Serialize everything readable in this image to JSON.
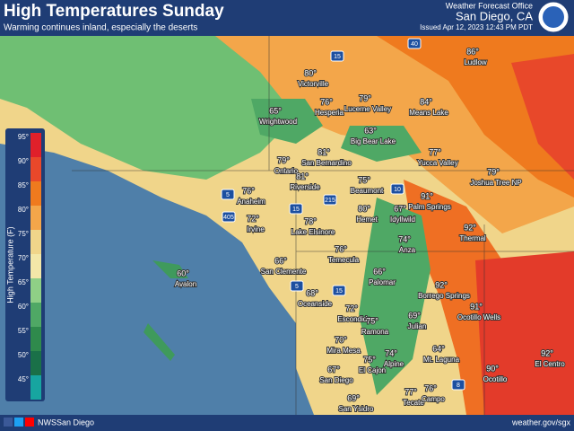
{
  "header": {
    "title": "High Temperatures Sunday",
    "subtitle": "Warming continues inland, especially the deserts",
    "office": "Weather Forecast Office",
    "location": "San Diego, CA",
    "issued": "Issued Apr 12, 2023 12:43 PM PDT"
  },
  "legend": {
    "title": "High Temperature (F)",
    "labels": [
      "95°",
      "90°",
      "85°",
      "80°",
      "75°",
      "70°",
      "65°",
      "60°",
      "55°",
      "50°",
      "45°"
    ]
  },
  "cities": [
    {
      "temp": "86°",
      "name": "Ludlow"
    },
    {
      "temp": "80°",
      "name": "Victorville"
    },
    {
      "temp": "76°",
      "name": "Hesperia"
    },
    {
      "temp": "79°",
      "name": "Lucerne Valley"
    },
    {
      "temp": "84°",
      "name": "Means Lake"
    },
    {
      "temp": "65°",
      "name": "Wrightwood"
    },
    {
      "temp": "63°",
      "name": "Big Bear Lake"
    },
    {
      "temp": "77°",
      "name": "Yucca Valley"
    },
    {
      "temp": "81°",
      "name": "San Bernardino"
    },
    {
      "temp": "79°",
      "name": "Ontario"
    },
    {
      "temp": "81°",
      "name": "Riverside"
    },
    {
      "temp": "79°",
      "name": "Joshua Tree NP"
    },
    {
      "temp": "75°",
      "name": "Beaumont"
    },
    {
      "temp": "91°",
      "name": "Palm Springs"
    },
    {
      "temp": "76°",
      "name": "Anaheim"
    },
    {
      "temp": "80°",
      "name": "Hemet"
    },
    {
      "temp": "67°",
      "name": "Idyllwild"
    },
    {
      "temp": "72°",
      "name": "Irvine"
    },
    {
      "temp": "78°",
      "name": "Lake Elsinore"
    },
    {
      "temp": "92°",
      "name": "Thermal"
    },
    {
      "temp": "74°",
      "name": "Anza"
    },
    {
      "temp": "76°",
      "name": "Temecula"
    },
    {
      "temp": "60°",
      "name": "Avalon"
    },
    {
      "temp": "66°",
      "name": "San Clemente"
    },
    {
      "temp": "66°",
      "name": "Palomar"
    },
    {
      "temp": "92°",
      "name": "Borrego Springs"
    },
    {
      "temp": "68°",
      "name": "Oceanside"
    },
    {
      "temp": "91°",
      "name": "Ocotillo Wells"
    },
    {
      "temp": "72°",
      "name": "Escondido"
    },
    {
      "temp": "75°",
      "name": "Ramona"
    },
    {
      "temp": "69°",
      "name": "Julian"
    },
    {
      "temp": "70°",
      "name": "Mira Mesa"
    },
    {
      "temp": "64°",
      "name": "Mt. Laguna"
    },
    {
      "temp": "92°",
      "name": "El Centro"
    },
    {
      "temp": "75°",
      "name": "El Cajon"
    },
    {
      "temp": "74°",
      "name": "Alpine"
    },
    {
      "temp": "67°",
      "name": "San Diego"
    },
    {
      "temp": "90°",
      "name": "Ocotillo"
    },
    {
      "temp": "69°",
      "name": "San Ysidro"
    },
    {
      "temp": "77°",
      "name": "Tecate"
    },
    {
      "temp": "76°",
      "name": "Campo"
    }
  ],
  "highways": [
    "40",
    "15",
    "10",
    "215",
    "5",
    "405",
    "15",
    "5",
    "15",
    "8"
  ],
  "footer": {
    "handle": "NWSSan Diego",
    "url": "weather.gov/sgx"
  }
}
